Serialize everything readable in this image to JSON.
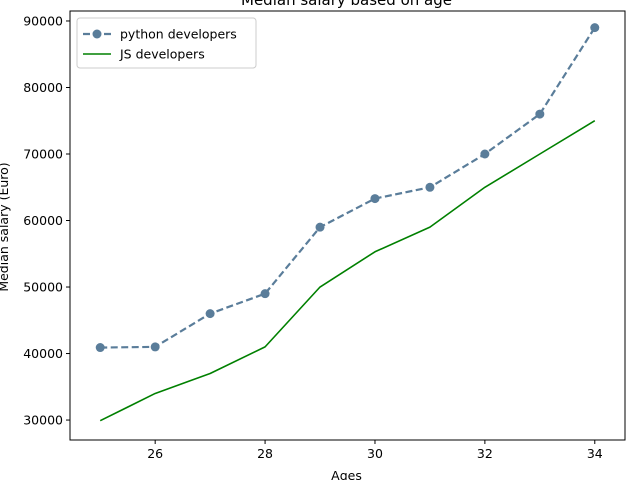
{
  "chart_data": {
    "type": "line",
    "title": "Median salary based on age",
    "xlabel": "Ages",
    "ylabel": "Median salary (Euro)",
    "x": [
      25,
      26,
      27,
      28,
      29,
      30,
      31,
      32,
      33,
      34
    ],
    "series": [
      {
        "name": "python developers",
        "values": [
          40900,
          41000,
          46000,
          49000,
          59000,
          63300,
          65000,
          70000,
          76000,
          89000
        ],
        "color": "#5a7d9a",
        "line_style": "dashed",
        "marker": "circle"
      },
      {
        "name": "JS developers",
        "values": [
          29900,
          34000,
          37000,
          41000,
          50000,
          55300,
          59000,
          65000,
          70000,
          75000
        ],
        "color": "#008000",
        "line_style": "solid",
        "marker": "none"
      }
    ],
    "xlim": [
      24.45,
      34.55
    ],
    "ylim": [
      27000,
      91500
    ],
    "xticks": [
      26,
      28,
      30,
      32,
      34
    ],
    "yticks": [
      30000,
      40000,
      50000,
      60000,
      70000,
      80000,
      90000
    ],
    "legend_position": "top-left",
    "grid": false
  }
}
